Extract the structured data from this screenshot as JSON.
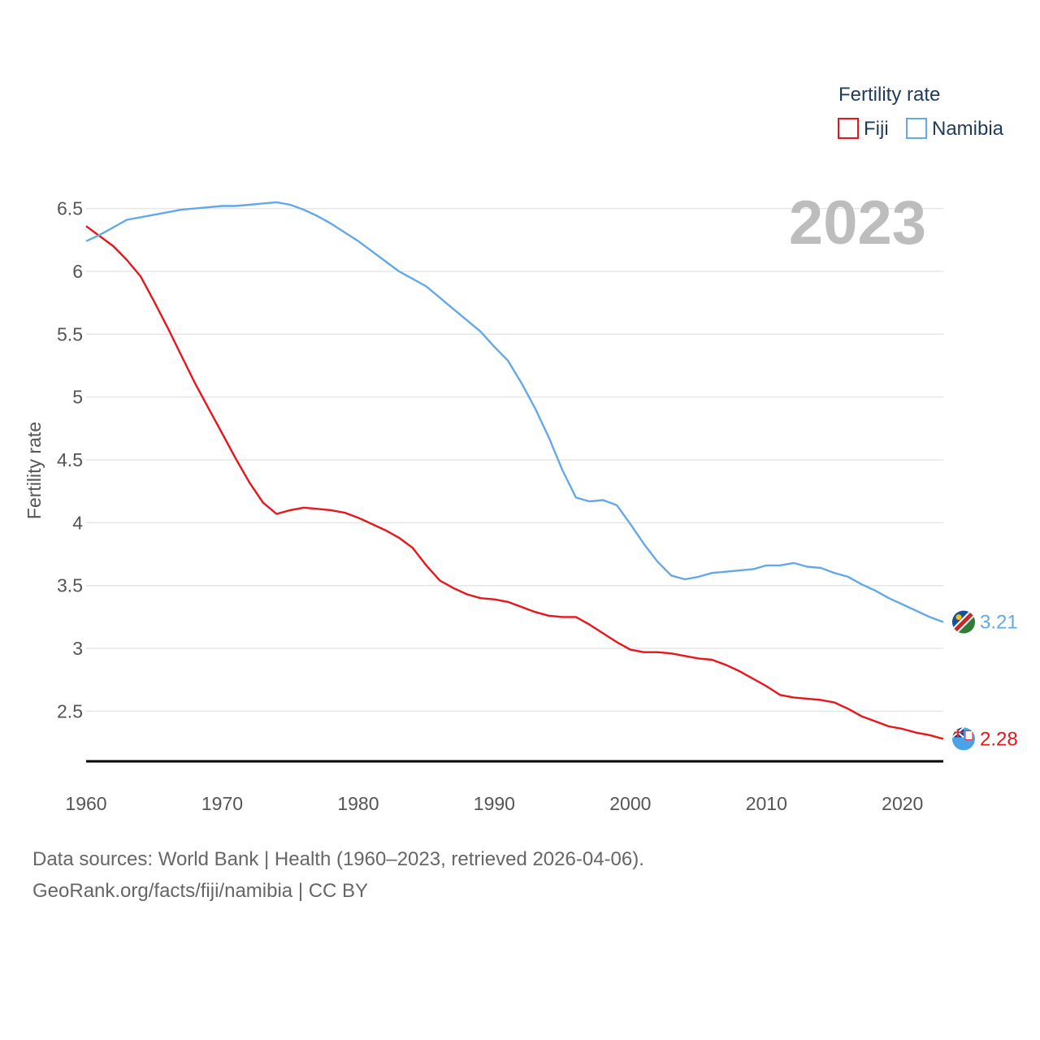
{
  "chart_data": {
    "type": "line",
    "legend_title": "Fertility rate",
    "ylabel": "Fertility rate",
    "xlabel": "",
    "year_label": "2023",
    "xlim": [
      1960,
      2023
    ],
    "ylim": [
      2.1,
      6.6
    ],
    "y_ticks": [
      2.5,
      3,
      3.5,
      4,
      4.5,
      5,
      5.5,
      6,
      6.5
    ],
    "y_tick_labels": [
      "2.5",
      "3",
      "3.5",
      "4",
      "4.5",
      "5",
      "5.5",
      "6",
      "6.5"
    ],
    "x_ticks": [
      1960,
      1970,
      1980,
      1990,
      2000,
      2010,
      2020
    ],
    "x_tick_labels": [
      "1960",
      "1970",
      "1980",
      "1990",
      "2000",
      "2010",
      "2020"
    ],
    "grid": true,
    "legend_position": "top-right",
    "x": [
      1960,
      1961,
      1962,
      1963,
      1964,
      1965,
      1966,
      1967,
      1968,
      1969,
      1970,
      1971,
      1972,
      1973,
      1974,
      1975,
      1976,
      1977,
      1978,
      1979,
      1980,
      1981,
      1982,
      1983,
      1984,
      1985,
      1986,
      1987,
      1988,
      1989,
      1990,
      1991,
      1992,
      1993,
      1994,
      1995,
      1996,
      1997,
      1998,
      1999,
      2000,
      2001,
      2002,
      2003,
      2004,
      2005,
      2006,
      2007,
      2008,
      2009,
      2010,
      2011,
      2012,
      2013,
      2014,
      2015,
      2016,
      2017,
      2018,
      2019,
      2020,
      2021,
      2022,
      2023
    ],
    "series": [
      {
        "name": "Fiji",
        "color": "#e8151b",
        "end_label": "2.28",
        "flag": "fiji-flag-icon",
        "values": [
          6.36,
          6.28,
          6.2,
          6.09,
          5.96,
          5.76,
          5.55,
          5.33,
          5.11,
          4.91,
          4.71,
          4.51,
          4.32,
          4.16,
          4.07,
          4.1,
          4.12,
          4.11,
          4.1,
          4.08,
          4.04,
          3.99,
          3.94,
          3.88,
          3.8,
          3.66,
          3.54,
          3.48,
          3.43,
          3.4,
          3.39,
          3.37,
          3.33,
          3.29,
          3.26,
          3.25,
          3.25,
          3.19,
          3.12,
          3.05,
          2.99,
          2.97,
          2.97,
          2.96,
          2.94,
          2.92,
          2.91,
          2.87,
          2.82,
          2.76,
          2.7,
          2.63,
          2.61,
          2.6,
          2.59,
          2.57,
          2.52,
          2.46,
          2.42,
          2.38,
          2.36,
          2.33,
          2.31,
          2.28
        ]
      },
      {
        "name": "Namibia",
        "color": "#64a8e8",
        "end_label": "3.21",
        "flag": "namibia-flag-icon",
        "values": [
          6.24,
          6.29,
          6.35,
          6.41,
          6.43,
          6.45,
          6.47,
          6.49,
          6.5,
          6.51,
          6.52,
          6.52,
          6.53,
          6.54,
          6.55,
          6.53,
          6.49,
          6.44,
          6.38,
          6.31,
          6.24,
          6.16,
          6.08,
          6.0,
          5.94,
          5.88,
          5.79,
          5.7,
          5.61,
          5.52,
          5.4,
          5.29,
          5.11,
          4.91,
          4.68,
          4.42,
          4.2,
          4.17,
          4.18,
          4.14,
          3.99,
          3.83,
          3.69,
          3.58,
          3.55,
          3.57,
          3.6,
          3.61,
          3.62,
          3.63,
          3.66,
          3.66,
          3.68,
          3.65,
          3.64,
          3.6,
          3.57,
          3.51,
          3.46,
          3.4,
          3.35,
          3.3,
          3.25,
          3.21
        ]
      }
    ],
    "source_line1": "Data sources: World Bank | Health (1960–2023, retrieved 2026-04-06).",
    "source_line2": "GeoRank.org/facts/fiji/namibia | CC BY"
  }
}
